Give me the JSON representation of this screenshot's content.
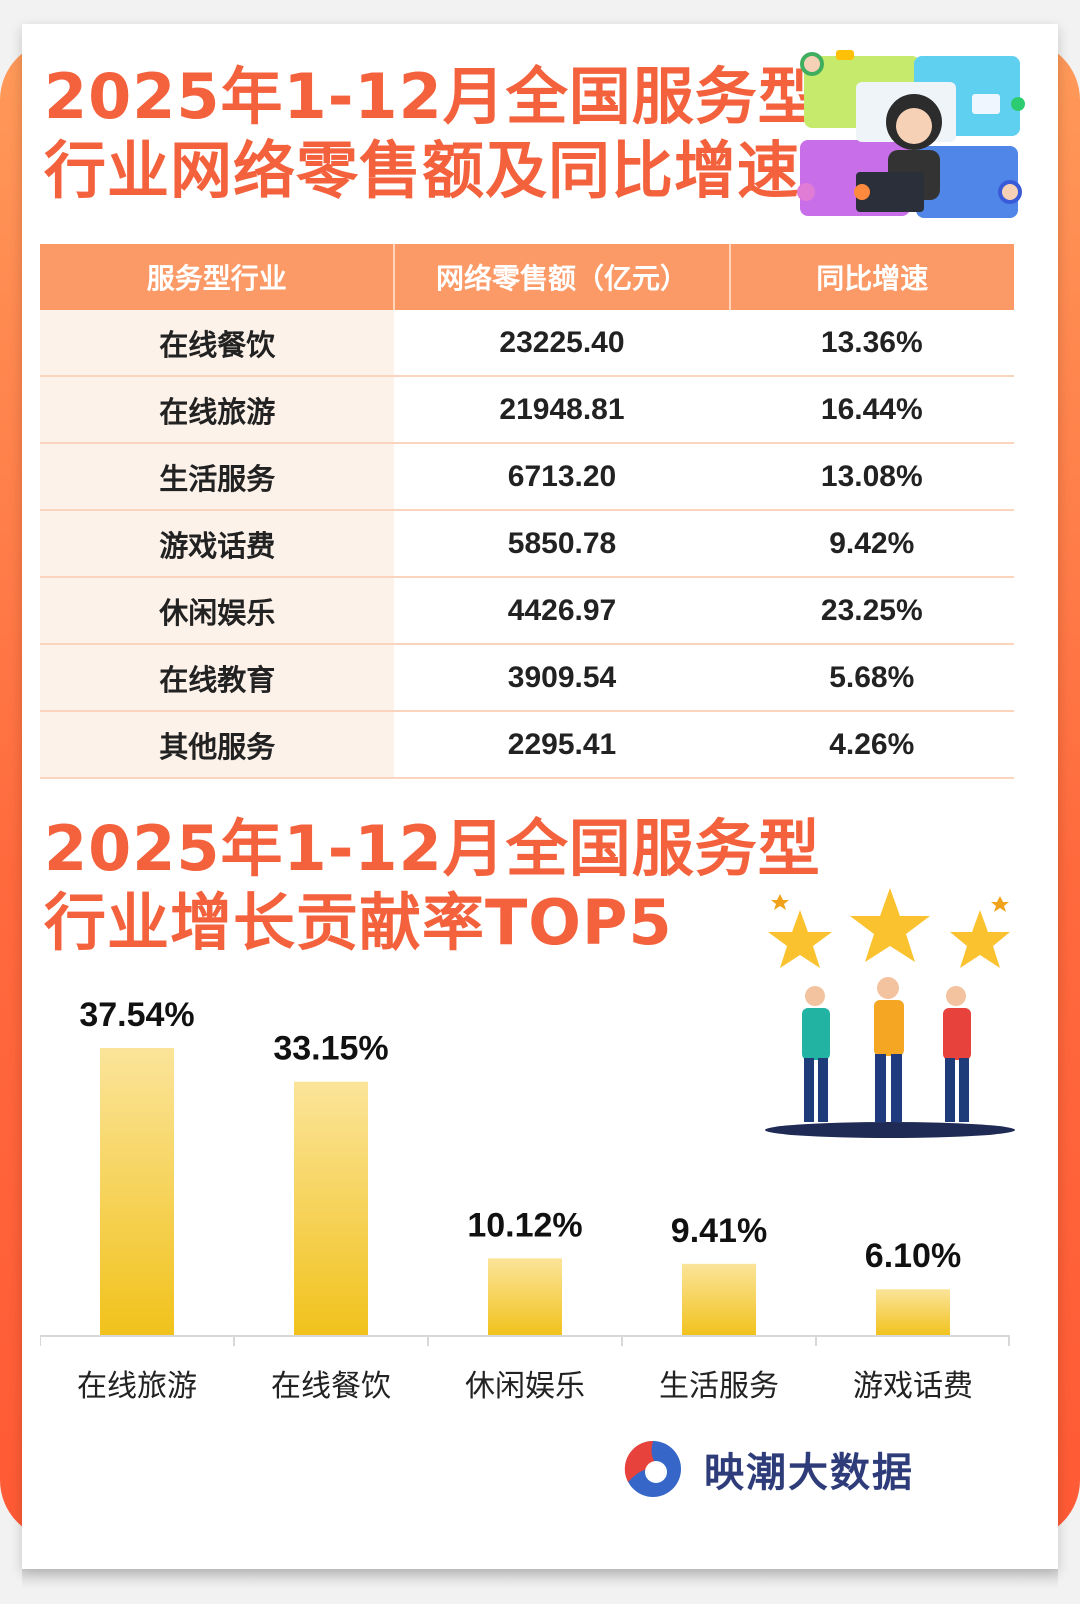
{
  "title_top": [
    "2025年1-12月全国服务型",
    "行业网络零售额及同比增速"
  ],
  "table": {
    "headers": [
      "服务型行业",
      "网络零售额（亿元）",
      "同比增速"
    ],
    "rows": [
      {
        "industry": "在线餐饮",
        "sales": "23225.40",
        "growth": "13.36%"
      },
      {
        "industry": "在线旅游",
        "sales": "21948.81",
        "growth": "16.44%"
      },
      {
        "industry": "生活服务",
        "sales": "6713.20",
        "growth": "13.08%"
      },
      {
        "industry": "游戏话费",
        "sales": "5850.78",
        "growth": "9.42%"
      },
      {
        "industry": "休闲娱乐",
        "sales": "4426.97",
        "growth": "23.25%"
      },
      {
        "industry": "在线教育",
        "sales": "3909.54",
        "growth": "5.68%"
      },
      {
        "industry": "其他服务",
        "sales": "2295.41",
        "growth": "4.26%"
      }
    ]
  },
  "title_bottom": [
    "2025年1-12月全国服务型",
    "行业增长贡献率TOP5"
  ],
  "chart_data": {
    "type": "bar",
    "title": "2025年1-12月全国服务型行业增长贡献率TOP5",
    "categories": [
      "在线旅游",
      "在线餐饮",
      "休闲娱乐",
      "生活服务",
      "游戏话费"
    ],
    "values": [
      37.54,
      33.15,
      10.12,
      9.41,
      6.1
    ],
    "value_labels": [
      "37.54%",
      "33.15%",
      "10.12%",
      "9.41%",
      "6.10%"
    ],
    "unit": "%",
    "ylim": [
      0,
      37.54
    ],
    "grid": false,
    "colors": {
      "bar_top": "#fbe49a",
      "bar_bottom": "#f1c21b",
      "axis": "#d8d8d8"
    }
  },
  "brand": {
    "name": "映潮大数据"
  },
  "colors": {
    "accent": "#f3623d",
    "header": "#fb9a66",
    "row_tint": "#fdf2ea",
    "frame": "#ff6a3d"
  }
}
